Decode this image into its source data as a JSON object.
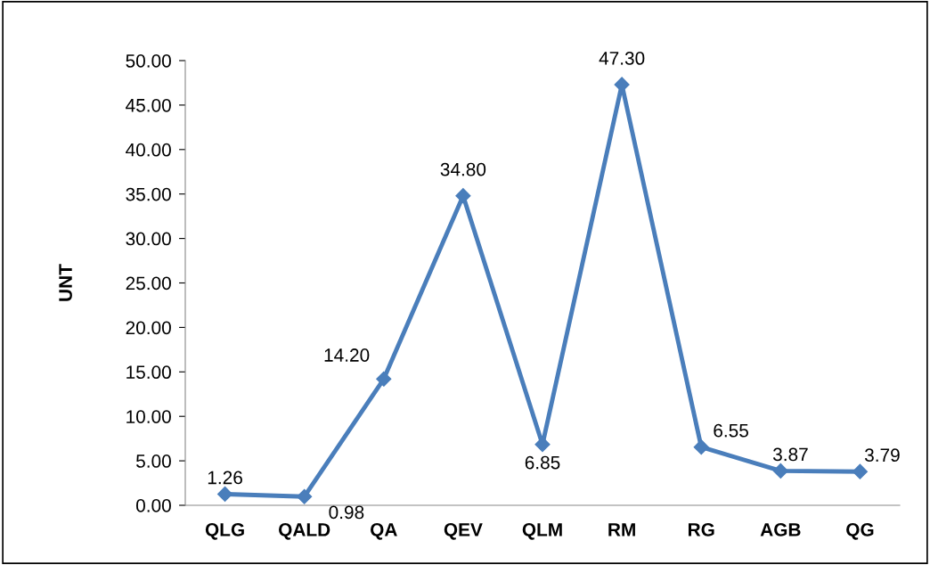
{
  "chart_data": {
    "type": "line",
    "ylabel": "UNT",
    "categories": [
      "QLG",
      "QALD",
      "QA",
      "QEV",
      "QLM",
      "RM",
      "RG",
      "AGB",
      "QG"
    ],
    "series": [
      {
        "color": "#4a7ebb",
        "values": [
          1.26,
          0.98,
          14.2,
          34.8,
          6.85,
          47.3,
          6.55,
          3.87,
          3.79
        ],
        "value_labels": [
          "1.26",
          "0.98",
          "14.20",
          "34.80",
          "6.85",
          "47.30",
          "6.55",
          "3.87",
          "3.79"
        ]
      }
    ],
    "ylim": [
      0,
      50
    ],
    "yticks": [
      {
        "value": 0,
        "label": "0.00"
      },
      {
        "value": 5,
        "label": "5.00"
      },
      {
        "value": 10,
        "label": "10.00"
      },
      {
        "value": 15,
        "label": "15.00"
      },
      {
        "value": 20,
        "label": "20.00"
      },
      {
        "value": 25,
        "label": "25.00"
      },
      {
        "value": 30,
        "label": "30.00"
      },
      {
        "value": 35,
        "label": "35.00"
      },
      {
        "value": 40,
        "label": "40.00"
      },
      {
        "value": 45,
        "label": "45.00"
      },
      {
        "value": 50,
        "label": "50.00"
      }
    ],
    "marker": "diamond",
    "line_style": "solid",
    "grid": false,
    "legend": false
  }
}
